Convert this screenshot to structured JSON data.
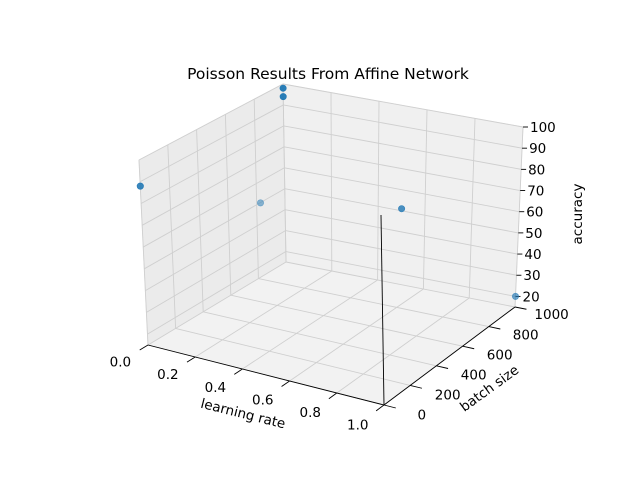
{
  "chart_data": {
    "type": "scatter3d",
    "title": "Poisson Results From Affine Network",
    "xlabel": "learning rate",
    "ylabel": "batch size",
    "zlabel": "accuracy",
    "xlim": [
      0.0,
      1.0
    ],
    "ylim": [
      0,
      1000
    ],
    "zlim": [
      15,
      100
    ],
    "xticks": [
      "0.0",
      "0.2",
      "0.4",
      "0.6",
      "0.8",
      "1.0"
    ],
    "yticks": [
      "0",
      "200",
      "400",
      "600",
      "800",
      "1000"
    ],
    "zticks": [
      "20",
      "30",
      "40",
      "50",
      "60",
      "70",
      "80",
      "90",
      "100"
    ],
    "grid": true,
    "marker_color": "#1f77b4",
    "series": [
      {
        "points": [
          {
            "x": 0.0,
            "y": 0,
            "z": 88
          },
          {
            "x": 0.0,
            "y": 0,
            "z": 88
          },
          {
            "x": 0.0,
            "y": 1000,
            "z": 94
          },
          {
            "x": 0.0,
            "y": 1000,
            "z": 98
          },
          {
            "x": 0.5,
            "y": 0,
            "z": 93
          },
          {
            "x": 0.5,
            "y": 1000,
            "z": 51
          },
          {
            "x": 1.0,
            "y": 1000,
            "z": 20
          }
        ]
      }
    ]
  }
}
